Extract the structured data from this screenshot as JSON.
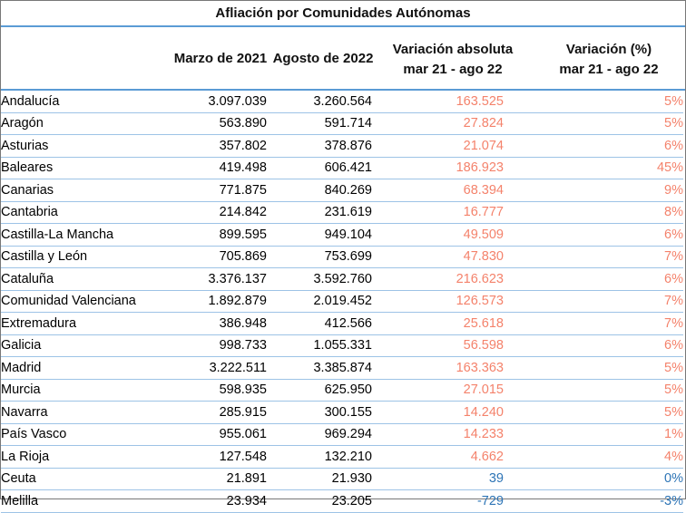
{
  "title": "Afliación por Comunidades Autónomas",
  "headers": {
    "mar21": "Marzo de 2021",
    "ago22": "Agosto de 2022",
    "abs_line1": "Variación absoluta",
    "abs_line2": "mar 21 - ago 22",
    "pct_line1": "Variación (%)",
    "pct_line2": "mar 21 - ago 22"
  },
  "colors": {
    "positive": "#f4826b",
    "negative": "#2e75b6",
    "rule": "#5b9bd5"
  },
  "rows": [
    {
      "name": "Andalucía",
      "mar21": "3.097.039",
      "ago22": "3.260.564",
      "abs": "163.525",
      "pct": "5%",
      "tone": "pos"
    },
    {
      "name": "Aragón",
      "mar21": "563.890",
      "ago22": "591.714",
      "abs": "27.824",
      "pct": "5%",
      "tone": "pos"
    },
    {
      "name": "Asturias",
      "mar21": "357.802",
      "ago22": "378.876",
      "abs": "21.074",
      "pct": "6%",
      "tone": "pos"
    },
    {
      "name": "Baleares",
      "mar21": "419.498",
      "ago22": "606.421",
      "abs": "186.923",
      "pct": "45%",
      "tone": "pos"
    },
    {
      "name": "Canarias",
      "mar21": "771.875",
      "ago22": "840.269",
      "abs": "68.394",
      "pct": "9%",
      "tone": "pos"
    },
    {
      "name": "Cantabria",
      "mar21": "214.842",
      "ago22": "231.619",
      "abs": "16.777",
      "pct": "8%",
      "tone": "pos"
    },
    {
      "name": "Castilla-La Mancha",
      "mar21": "899.595",
      "ago22": "949.104",
      "abs": "49.509",
      "pct": "6%",
      "tone": "pos"
    },
    {
      "name": "Castilla y León",
      "mar21": "705.869",
      "ago22": "753.699",
      "abs": "47.830",
      "pct": "7%",
      "tone": "pos"
    },
    {
      "name": "Cataluña",
      "mar21": "3.376.137",
      "ago22": "3.592.760",
      "abs": "216.623",
      "pct": "6%",
      "tone": "pos"
    },
    {
      "name": "Comunidad Valenciana",
      "mar21": "1.892.879",
      "ago22": "2.019.452",
      "abs": "126.573",
      "pct": "7%",
      "tone": "pos"
    },
    {
      "name": "Extremadura",
      "mar21": "386.948",
      "ago22": "412.566",
      "abs": "25.618",
      "pct": "7%",
      "tone": "pos"
    },
    {
      "name": "Galicia",
      "mar21": "998.733",
      "ago22": "1.055.331",
      "abs": "56.598",
      "pct": "6%",
      "tone": "pos"
    },
    {
      "name": "Madrid",
      "mar21": "3.222.511",
      "ago22": "3.385.874",
      "abs": "163.363",
      "pct": "5%",
      "tone": "pos"
    },
    {
      "name": "Murcia",
      "mar21": "598.935",
      "ago22": "625.950",
      "abs": "27.015",
      "pct": "5%",
      "tone": "pos"
    },
    {
      "name": "Navarra",
      "mar21": "285.915",
      "ago22": "300.155",
      "abs": "14.240",
      "pct": "5%",
      "tone": "pos"
    },
    {
      "name": "País Vasco",
      "mar21": "955.061",
      "ago22": "969.294",
      "abs": "14.233",
      "pct": "1%",
      "tone": "pos"
    },
    {
      "name": "La Rioja",
      "mar21": "127.548",
      "ago22": "132.210",
      "abs": "4.662",
      "pct": "4%",
      "tone": "pos"
    },
    {
      "name": "Ceuta",
      "mar21": "21.891",
      "ago22": "21.930",
      "abs": "39",
      "pct": "0%",
      "tone": "neg"
    },
    {
      "name": "Melilla",
      "mar21": "23.934",
      "ago22": "23.205",
      "abs": "-729",
      "pct": "-3%",
      "tone": "neg"
    }
  ]
}
